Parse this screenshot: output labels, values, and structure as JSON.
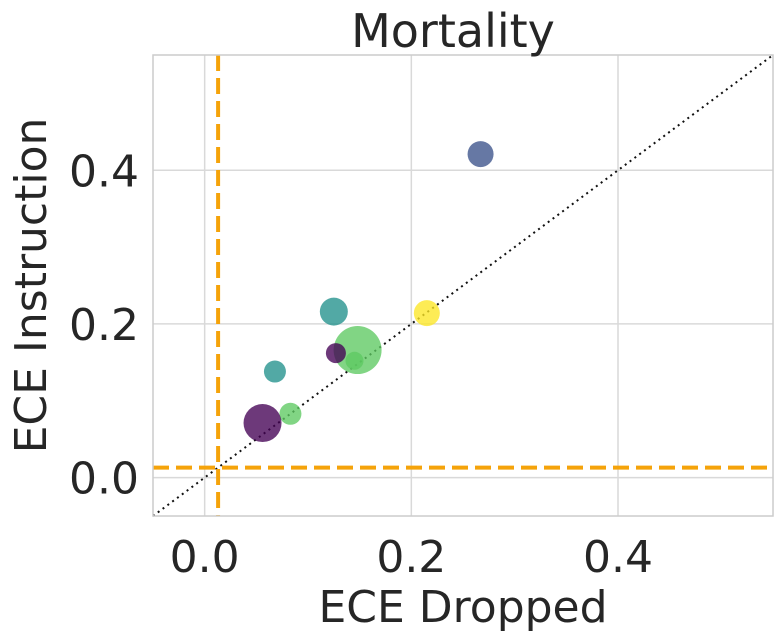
{
  "chart_data": {
    "type": "scatter",
    "title": "Mortality",
    "xlabel": "ECE Dropped",
    "ylabel": "ECE Instruction",
    "xlim": [
      -0.05,
      0.55
    ],
    "ylim": [
      -0.05,
      0.55
    ],
    "x_ticks": [
      0.0,
      0.2,
      0.4
    ],
    "y_ticks": [
      0.0,
      0.2,
      0.4
    ],
    "x_tick_labels": [
      "0.0",
      "0.2",
      "0.4"
    ],
    "y_tick_labels": [
      "0.0",
      "0.2",
      "0.4"
    ],
    "grid": true,
    "diagonal": {
      "style": "dotted",
      "color": "#111111",
      "from": [
        -0.05,
        -0.05
      ],
      "to": [
        0.55,
        0.55
      ]
    },
    "reference_lines": [
      {
        "orientation": "vertical",
        "value": 0.013,
        "color": "#f5a30a",
        "style": "dashed"
      },
      {
        "orientation": "horizontal",
        "value": 0.013,
        "color": "#f5a30a",
        "style": "dashed"
      }
    ],
    "points": [
      {
        "x": 0.267,
        "y": 0.421,
        "size": 13,
        "color": "#3b528b"
      },
      {
        "x": 0.125,
        "y": 0.216,
        "size": 14,
        "color": "#21918c"
      },
      {
        "x": 0.215,
        "y": 0.214,
        "size": 13,
        "color": "#fde725"
      },
      {
        "x": 0.068,
        "y": 0.138,
        "size": 11,
        "color": "#21918c"
      },
      {
        "x": 0.148,
        "y": 0.166,
        "size": 24,
        "color": "#5ec962"
      },
      {
        "x": 0.145,
        "y": 0.152,
        "size": 9,
        "color": "#5ec962"
      },
      {
        "x": 0.127,
        "y": 0.162,
        "size": 10,
        "color": "#440154"
      },
      {
        "x": 0.083,
        "y": 0.083,
        "size": 11,
        "color": "#5ec962"
      },
      {
        "x": 0.056,
        "y": 0.071,
        "size": 19,
        "color": "#440154"
      }
    ]
  }
}
